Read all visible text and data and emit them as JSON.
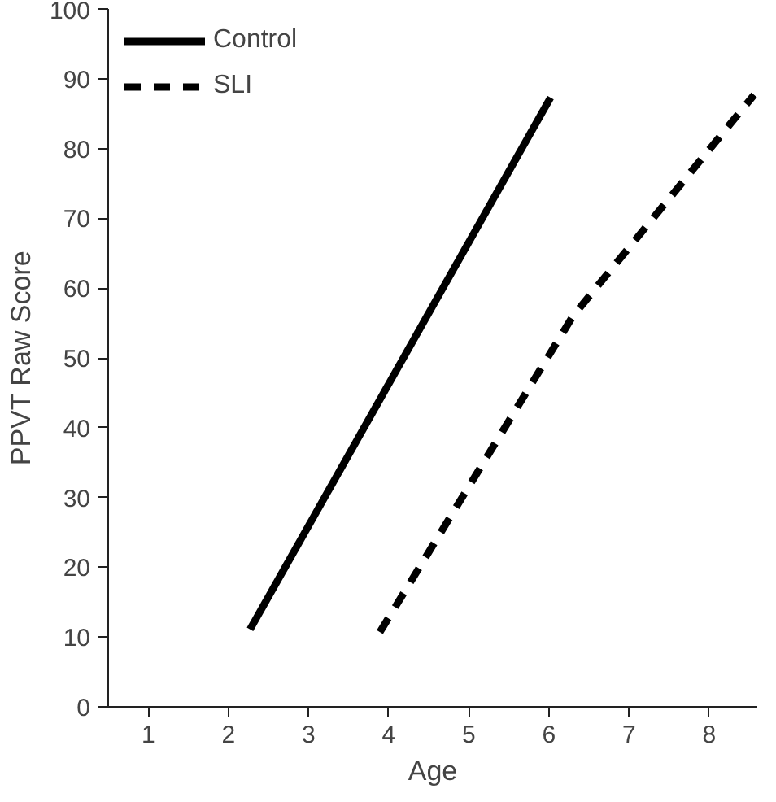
{
  "chart_data": {
    "type": "line",
    "xlabel": "Age",
    "ylabel": "PPVT Raw Score",
    "xlim": [
      0.5,
      8.6
    ],
    "ylim": [
      0,
      100
    ],
    "xticks": [
      1,
      2,
      3,
      4,
      5,
      6,
      7,
      8
    ],
    "yticks": [
      0,
      10,
      20,
      30,
      40,
      50,
      60,
      70,
      80,
      90,
      100
    ],
    "grid": false,
    "legend": "top left",
    "marker": "none",
    "series": [
      {
        "name": "Control",
        "color": "#000000",
        "line_style": "solid",
        "x": [
          2.27,
          6.02
        ],
        "values": [
          11.1,
          87.3
        ]
      },
      {
        "name": "SLI",
        "color": "#000000",
        "line_style": "dashed",
        "x": [
          3.89,
          6.3,
          8.56
        ],
        "values": [
          10.7,
          56,
          87.7
        ]
      }
    ]
  }
}
